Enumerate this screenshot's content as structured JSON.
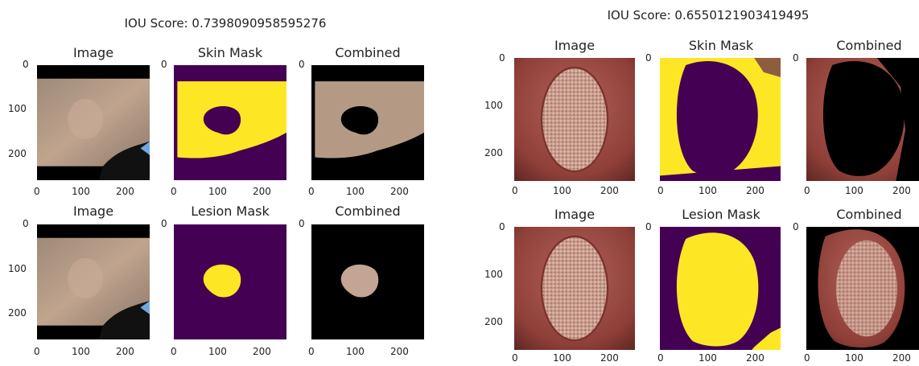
{
  "figures": [
    {
      "id": "left",
      "iou_text": "IOU Score: 0.7398090958595276",
      "panels": [
        {
          "title": "Image",
          "kind": "photo-left"
        },
        {
          "title": "Skin Mask",
          "kind": "skin-left"
        },
        {
          "title": "Combined",
          "kind": "combined-skin-left"
        },
        {
          "title": "Image",
          "kind": "photo-left"
        },
        {
          "title": "Lesion Mask",
          "kind": "lesion-left"
        },
        {
          "title": "Combined",
          "kind": "combined-lesion-left"
        }
      ],
      "y_ticks": [
        "0",
        "100",
        "200"
      ],
      "x_ticks": [
        "0",
        "100",
        "200"
      ]
    },
    {
      "id": "right",
      "iou_text": "IOU Score: 0.6550121903419495",
      "panels": [
        {
          "title": "Image",
          "kind": "photo-right"
        },
        {
          "title": "Skin Mask",
          "kind": "skin-right"
        },
        {
          "title": "Combined",
          "kind": "combined-skin-right"
        },
        {
          "title": "Image",
          "kind": "photo-right"
        },
        {
          "title": "Lesion Mask",
          "kind": "lesion-right"
        },
        {
          "title": "Combined",
          "kind": "combined-lesion-right"
        }
      ],
      "y_ticks": [
        "0",
        "100",
        "200"
      ],
      "x_ticks": [
        "0",
        "100",
        "200"
      ]
    }
  ],
  "colors": {
    "mask_bg": "#440154",
    "mask_fg": "#fde725",
    "skin_tone": "#b89880",
    "lesion_red": "#9a4a40"
  }
}
